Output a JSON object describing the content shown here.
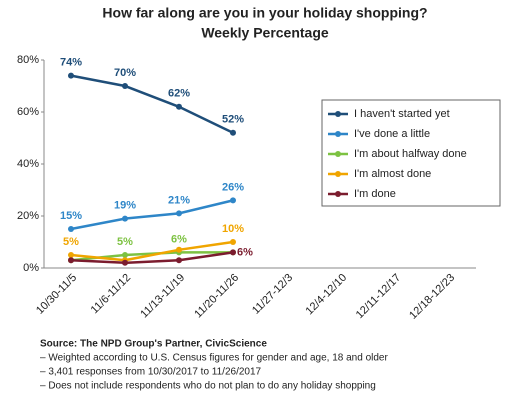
{
  "chart_data": {
    "type": "line",
    "title": "How far along are you in your holiday shopping?",
    "subtitle": "Weekly Percentage",
    "categories": [
      "10/30-11/5",
      "11/6-11/12",
      "11/13-11/19",
      "11/20-11/26",
      "11/27-12/3",
      "12/4-12/10",
      "12/11-12/17",
      "12/18-12/23"
    ],
    "series": [
      {
        "name": "I haven't started yet",
        "color": "#1f4e79",
        "values": [
          74,
          70,
          62,
          52,
          null,
          null,
          null,
          null
        ],
        "value_labels": [
          "74%",
          "70%",
          "62%",
          "52%",
          null,
          null,
          null,
          null
        ]
      },
      {
        "name": "I've done a little",
        "color": "#2e86c8",
        "values": [
          15,
          19,
          21,
          26,
          null,
          null,
          null,
          null
        ],
        "value_labels": [
          "15%",
          "19%",
          "21%",
          "26%",
          null,
          null,
          null,
          null
        ]
      },
      {
        "name": "I'm about halfway done",
        "color": "#7dc242",
        "values": [
          3,
          5,
          6,
          6,
          null,
          null,
          null,
          null
        ],
        "value_labels": [
          null,
          "5%",
          "6%",
          null,
          null,
          null,
          null,
          null
        ]
      },
      {
        "name": "I'm almost done",
        "color": "#f0a500",
        "values": [
          5,
          3,
          7,
          10,
          null,
          null,
          null,
          null
        ],
        "value_labels": [
          "5%",
          null,
          null,
          "10%",
          null,
          null,
          null,
          null
        ]
      },
      {
        "name": "I'm done",
        "color": "#7b1c2e",
        "values": [
          3,
          2,
          3,
          6,
          null,
          null,
          null,
          null
        ],
        "value_labels": [
          null,
          null,
          null,
          "6%",
          null,
          null,
          null,
          null
        ]
      }
    ],
    "ylim": [
      0,
      80
    ],
    "yticks": [
      {
        "value": 0,
        "label": "0%"
      },
      {
        "value": 20,
        "label": "20%"
      },
      {
        "value": 40,
        "label": "40%"
      },
      {
        "value": 60,
        "label": "60%"
      },
      {
        "value": 80,
        "label": "80%"
      }
    ],
    "legend": "right",
    "notes": [
      "Source: The NPD Group's Partner, CivicScience",
      "– Weighted according to U.S. Census figures for gender and age, 18 and older",
      "– 3,401 responses from 10/30/2017 to 11/26/2017",
      "– Does not include respondents who do not plan to do any holiday shopping"
    ]
  }
}
